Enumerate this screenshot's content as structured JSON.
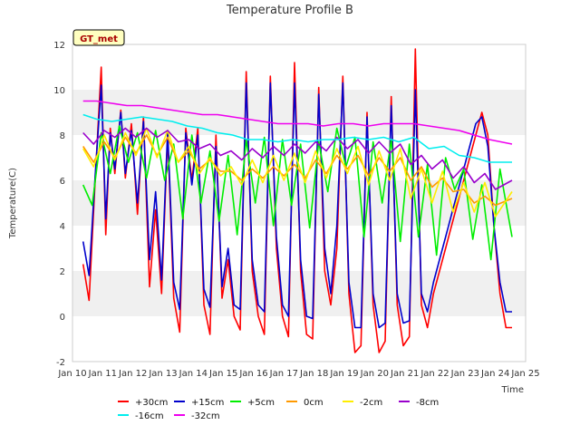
{
  "chart_data": {
    "type": "line",
    "title": "Temperature Profile B",
    "xlabel": "Time",
    "ylabel": "Temperature(C)",
    "badge": "GT_met",
    "ylim": [
      -2,
      12
    ],
    "xlim": [
      10,
      25
    ],
    "yticks": [
      -2,
      0,
      2,
      4,
      6,
      8,
      10,
      12
    ],
    "xticks": [
      {
        "v": 10,
        "label": "Jan 10"
      },
      {
        "v": 11,
        "label": "Jan 11"
      },
      {
        "v": 12,
        "label": "Jan 12"
      },
      {
        "v": 13,
        "label": "Jan 13"
      },
      {
        "v": 14,
        "label": "Jan 14"
      },
      {
        "v": 15,
        "label": "Jan 15"
      },
      {
        "v": 16,
        "label": "Jan 16"
      },
      {
        "v": 17,
        "label": "Jan 17"
      },
      {
        "v": 18,
        "label": "Jan 18"
      },
      {
        "v": 19,
        "label": "Jan 19"
      },
      {
        "v": 20,
        "label": "Jan 20"
      },
      {
        "v": 21,
        "label": "Jan 21"
      },
      {
        "v": 22,
        "label": "Jan 22"
      },
      {
        "v": 23,
        "label": "Jan 23"
      },
      {
        "v": 24,
        "label": "Jan 24"
      },
      {
        "v": 25,
        "label": "Jan 25"
      }
    ],
    "grid": "horizontal bands",
    "legend_position": "bottom",
    "series": [
      {
        "name": "+30cm",
        "color": "#ff0000",
        "x": [
          10.35,
          10.55,
          10.75,
          10.95,
          11.1,
          11.25,
          11.4,
          11.6,
          11.75,
          11.95,
          12.15,
          12.35,
          12.55,
          12.75,
          12.95,
          13.15,
          13.35,
          13.55,
          13.75,
          13.95,
          14.15,
          14.35,
          14.55,
          14.75,
          14.95,
          15.15,
          15.35,
          15.55,
          15.75,
          15.95,
          16.15,
          16.35,
          16.55,
          16.75,
          16.95,
          17.15,
          17.35,
          17.55,
          17.75,
          17.95,
          18.15,
          18.35,
          18.55,
          18.75,
          18.95,
          19.15,
          19.35,
          19.55,
          19.75,
          19.95,
          20.15,
          20.35,
          20.55,
          20.75,
          20.95,
          21.15,
          21.35,
          21.55,
          21.75,
          21.95,
          22.15,
          22.35,
          22.55,
          22.75,
          22.95,
          23.15,
          23.35,
          23.55,
          23.75,
          23.95,
          24.15,
          24.35,
          24.55
        ],
        "y": [
          2.3,
          0.7,
          6.0,
          11.0,
          3.6,
          8.3,
          6.3,
          9.1,
          6.1,
          8.5,
          4.5,
          8.8,
          1.3,
          4.7,
          1.0,
          8.0,
          0.8,
          -0.7,
          8.3,
          6.0,
          8.3,
          0.5,
          -0.8,
          8.0,
          0.8,
          2.5,
          0.0,
          -0.6,
          10.8,
          2.0,
          0.0,
          -0.8,
          10.6,
          3.0,
          0.0,
          -0.9,
          11.2,
          2.0,
          -0.8,
          -1.0,
          10.1,
          2.0,
          0.5,
          3.0,
          10.6,
          1.0,
          -1.6,
          -1.3,
          9.0,
          0.5,
          -1.6,
          -1.1,
          9.7,
          0.5,
          -1.3,
          -0.9,
          11.8,
          0.5,
          -0.5,
          1.0,
          2.0,
          3.0,
          4.0,
          5.0,
          6.0,
          7.0,
          8.0,
          9.0,
          8.0,
          4.0,
          1.0,
          -0.5,
          -0.5
        ]
      },
      {
        "name": "+15cm",
        "color": "#0000cc",
        "x": [
          10.35,
          10.55,
          10.75,
          10.95,
          11.1,
          11.25,
          11.4,
          11.6,
          11.75,
          11.95,
          12.15,
          12.35,
          12.55,
          12.75,
          12.95,
          13.15,
          13.35,
          13.55,
          13.75,
          13.95,
          14.15,
          14.35,
          14.55,
          14.75,
          14.95,
          15.15,
          15.35,
          15.55,
          15.75,
          15.95,
          16.15,
          16.35,
          16.55,
          16.75,
          16.95,
          17.15,
          17.35,
          17.55,
          17.75,
          17.95,
          18.15,
          18.35,
          18.55,
          18.75,
          18.95,
          19.15,
          19.35,
          19.55,
          19.75,
          19.95,
          20.15,
          20.35,
          20.55,
          20.75,
          20.95,
          21.15,
          21.35,
          21.55,
          21.75,
          21.95,
          22.15,
          22.35,
          22.55,
          22.75,
          22.95,
          23.15,
          23.35,
          23.55,
          23.75,
          23.95,
          24.15,
          24.35,
          24.55
        ],
        "y": [
          3.3,
          1.8,
          6.2,
          10.2,
          4.3,
          8.1,
          6.5,
          9.0,
          6.3,
          8.2,
          5.0,
          8.6,
          2.5,
          5.5,
          1.6,
          8.2,
          1.5,
          0.3,
          8.1,
          5.8,
          8.0,
          1.2,
          0.4,
          7.5,
          1.3,
          3.0,
          0.5,
          0.3,
          10.3,
          2.5,
          0.5,
          0.2,
          10.3,
          3.5,
          0.5,
          0.0,
          10.3,
          2.5,
          0.0,
          -0.1,
          9.8,
          3.0,
          1.0,
          4.0,
          10.3,
          1.5,
          -0.5,
          -0.5,
          8.8,
          1.0,
          -0.5,
          -0.3,
          9.3,
          1.0,
          -0.3,
          -0.2,
          10.0,
          1.0,
          0.2,
          1.5,
          2.5,
          3.5,
          4.5,
          5.5,
          6.5,
          7.5,
          8.5,
          8.8,
          7.5,
          4.0,
          1.5,
          0.2,
          0.2
        ]
      },
      {
        "name": "+5cm",
        "color": "#00ee00",
        "x": [
          10.35,
          10.65,
          10.95,
          11.25,
          11.55,
          11.85,
          12.15,
          12.45,
          12.75,
          13.05,
          13.35,
          13.65,
          13.95,
          14.25,
          14.55,
          14.85,
          15.15,
          15.45,
          15.75,
          16.05,
          16.35,
          16.65,
          16.95,
          17.25,
          17.55,
          17.85,
          18.15,
          18.45,
          18.75,
          19.05,
          19.35,
          19.65,
          19.95,
          20.25,
          20.55,
          20.85,
          21.15,
          21.45,
          21.75,
          22.05,
          22.35,
          22.65,
          22.95,
          23.25,
          23.55,
          23.85,
          24.15,
          24.55
        ],
        "y": [
          5.8,
          4.9,
          8.1,
          6.3,
          8.4,
          6.8,
          8.1,
          6.1,
          8.2,
          6.0,
          7.6,
          4.3,
          8.0,
          5.0,
          7.3,
          4.2,
          7.1,
          3.6,
          7.8,
          5.0,
          7.9,
          4.0,
          7.8,
          4.9,
          7.6,
          3.9,
          7.7,
          5.5,
          8.3,
          6.6,
          7.9,
          3.5,
          7.7,
          5.0,
          7.8,
          3.3,
          7.6,
          3.5,
          6.7,
          2.7,
          7.0,
          5.6,
          6.5,
          3.4,
          5.8,
          2.5,
          6.5,
          3.5
        ]
      },
      {
        "name": "0cm",
        "color": "#ff9900",
        "x": [
          10.35,
          10.7,
          11.05,
          11.4,
          11.75,
          12.1,
          12.45,
          12.8,
          13.15,
          13.5,
          13.85,
          14.2,
          14.55,
          14.9,
          15.25,
          15.6,
          15.95,
          16.3,
          16.65,
          17.0,
          17.35,
          17.7,
          18.05,
          18.4,
          18.75,
          19.1,
          19.45,
          19.8,
          20.15,
          20.5,
          20.85,
          21.2,
          21.55,
          21.9,
          22.25,
          22.6,
          22.95,
          23.3,
          23.65,
          24.0,
          24.55
        ],
        "y": [
          7.5,
          6.8,
          7.7,
          7.0,
          7.9,
          7.2,
          8.0,
          7.1,
          7.9,
          6.8,
          7.3,
          6.5,
          6.9,
          6.4,
          6.4,
          6.0,
          6.5,
          6.1,
          6.6,
          6.2,
          6.7,
          6.1,
          6.9,
          6.3,
          7.1,
          6.5,
          7.1,
          6.2,
          7.0,
          6.4,
          7.0,
          6.0,
          6.6,
          5.7,
          6.1,
          5.5,
          5.6,
          5.0,
          5.3,
          4.9,
          5.2
        ]
      },
      {
        "name": "-2cm",
        "color": "#ffee00",
        "x": [
          10.35,
          10.7,
          11.05,
          11.4,
          11.75,
          12.1,
          12.45,
          12.8,
          13.15,
          13.5,
          13.85,
          14.2,
          14.55,
          14.9,
          15.25,
          15.6,
          15.95,
          16.3,
          16.65,
          17.0,
          17.35,
          17.7,
          18.05,
          18.4,
          18.75,
          19.1,
          19.45,
          19.8,
          20.15,
          20.5,
          20.85,
          21.2,
          21.55,
          21.9,
          22.25,
          22.6,
          22.95,
          23.3,
          23.65,
          24.0,
          24.55
        ],
        "y": [
          7.4,
          6.6,
          8.0,
          6.9,
          8.1,
          7.1,
          8.3,
          7.0,
          8.2,
          6.8,
          7.5,
          6.3,
          7.0,
          6.2,
          6.6,
          5.8,
          6.9,
          5.9,
          7.1,
          6.0,
          7.2,
          5.9,
          7.3,
          6.1,
          7.4,
          6.3,
          7.5,
          5.8,
          7.3,
          6.0,
          7.4,
          5.2,
          6.5,
          5.0,
          6.4,
          4.6,
          5.9,
          4.6,
          5.9,
          4.4,
          5.5
        ]
      },
      {
        "name": "-8cm",
        "color": "#9900cc",
        "x": [
          10.35,
          10.7,
          11.05,
          11.4,
          11.75,
          12.1,
          12.45,
          12.8,
          13.15,
          13.5,
          13.85,
          14.2,
          14.55,
          14.9,
          15.25,
          15.6,
          15.95,
          16.3,
          16.65,
          17.0,
          17.35,
          17.7,
          18.05,
          18.4,
          18.75,
          19.1,
          19.45,
          19.8,
          20.15,
          20.5,
          20.85,
          21.2,
          21.55,
          21.9,
          22.25,
          22.6,
          22.95,
          23.3,
          23.65,
          24.0,
          24.55
        ],
        "y": [
          8.1,
          7.6,
          8.2,
          7.9,
          8.3,
          7.9,
          8.3,
          7.9,
          8.2,
          7.7,
          7.8,
          7.4,
          7.6,
          7.1,
          7.3,
          6.9,
          7.4,
          7.0,
          7.5,
          7.1,
          7.6,
          7.2,
          7.7,
          7.3,
          7.9,
          7.4,
          7.8,
          7.2,
          7.7,
          7.2,
          7.6,
          6.7,
          7.1,
          6.5,
          6.9,
          6.1,
          6.6,
          5.9,
          6.3,
          5.6,
          6.0
        ]
      },
      {
        "name": "-16cm",
        "color": "#00eeee",
        "x": [
          10.35,
          10.8,
          11.3,
          11.8,
          12.3,
          12.8,
          13.3,
          13.8,
          14.3,
          14.8,
          15.3,
          15.8,
          16.3,
          16.8,
          17.3,
          17.8,
          18.3,
          18.8,
          19.3,
          19.8,
          20.3,
          20.8,
          21.3,
          21.8,
          22.3,
          22.8,
          23.3,
          23.8,
          24.55
        ],
        "y": [
          8.9,
          8.7,
          8.6,
          8.7,
          8.8,
          8.7,
          8.6,
          8.4,
          8.3,
          8.1,
          8.0,
          7.8,
          7.8,
          7.7,
          7.8,
          7.7,
          7.8,
          7.8,
          7.9,
          7.8,
          7.9,
          7.7,
          7.9,
          7.4,
          7.5,
          7.1,
          7.0,
          6.8,
          6.8
        ]
      },
      {
        "name": "-32cm",
        "color": "#ee00ee",
        "x": [
          10.35,
          10.8,
          11.3,
          11.8,
          12.3,
          12.8,
          13.3,
          13.8,
          14.3,
          14.8,
          15.3,
          15.8,
          16.3,
          16.8,
          17.3,
          17.8,
          18.3,
          18.8,
          19.3,
          19.8,
          20.3,
          20.8,
          21.3,
          21.8,
          22.3,
          22.8,
          23.3,
          23.8,
          24.55
        ],
        "y": [
          9.5,
          9.5,
          9.4,
          9.3,
          9.3,
          9.2,
          9.1,
          9.0,
          8.9,
          8.9,
          8.8,
          8.7,
          8.6,
          8.5,
          8.5,
          8.5,
          8.4,
          8.5,
          8.5,
          8.4,
          8.5,
          8.5,
          8.5,
          8.4,
          8.3,
          8.2,
          8.0,
          7.8,
          7.6
        ]
      }
    ]
  }
}
